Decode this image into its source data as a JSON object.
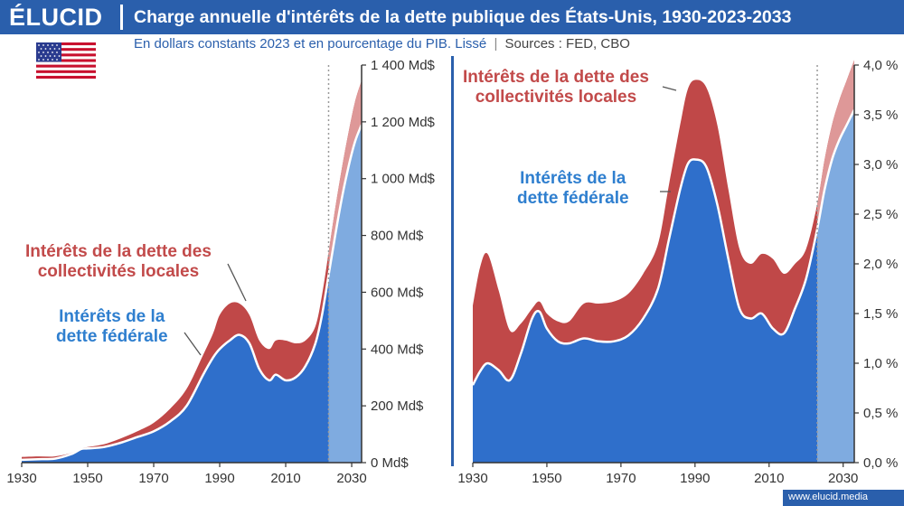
{
  "header": {
    "logo": "ÉLUCID",
    "title": "Charge annuelle d'intérêts de la dette publique des États-Unis, 1930-2023-2033",
    "subtitle": "En dollars constants 2023 et en pourcentage du PIB. Lissé",
    "separator": "|",
    "sources": "Sources : FED, CBO"
  },
  "footer": {
    "site": "www.elucid.media"
  },
  "colors": {
    "federal": "#2f6fcb",
    "federal_forecast": "#7fabe0",
    "local": "#c04848",
    "local_forecast": "#de9898",
    "brand": "#2a5fac"
  },
  "icons": {
    "flag": "us-flag-icon"
  },
  "chart_data": [
    {
      "type": "area",
      "stacked": true,
      "unit": "Md$ (dollars constants 2023)",
      "forecast_from": 2023,
      "xlim": [
        1930,
        2033
      ],
      "ylim": [
        0,
        1400
      ],
      "x_ticks": [
        1930,
        1950,
        1970,
        1990,
        2010,
        2030
      ],
      "y_ticks": [
        0,
        200,
        400,
        600,
        800,
        1000,
        1200,
        1400
      ],
      "y_tick_labels": [
        "0 Md$",
        "200 Md$",
        "400 Md$",
        "600 Md$",
        "800 Md$",
        "1 000 Md$",
        "1 200 Md$",
        "1 400 Md$"
      ],
      "x": [
        1930,
        1935,
        1940,
        1945,
        1948,
        1950,
        1955,
        1960,
        1965,
        1970,
        1975,
        1980,
        1985,
        1988,
        1990,
        1993,
        1996,
        1999,
        2002,
        2005,
        2007,
        2010,
        2013,
        2016,
        2019,
        2021,
        2023,
        2025,
        2027,
        2029,
        2031,
        2033
      ],
      "series": [
        {
          "name": "Intérêts de la dette fédérale",
          "values": [
            10,
            12,
            14,
            30,
            48,
            50,
            55,
            70,
            90,
            110,
            145,
            200,
            310,
            370,
            400,
            430,
            450,
            420,
            330,
            290,
            310,
            290,
            300,
            340,
            420,
            520,
            660,
            800,
            930,
            1040,
            1130,
            1190
          ]
        },
        {
          "name": "Intérêts de la dette des collectivités locales",
          "values": [
            10,
            10,
            8,
            4,
            3,
            5,
            10,
            15,
            20,
            30,
            45,
            60,
            70,
            85,
            120,
            130,
            110,
            100,
            100,
            110,
            120,
            140,
            120,
            90,
            60,
            70,
            80,
            95,
            105,
            120,
            140,
            155
          ]
        }
      ],
      "annotations": {
        "local": [
          "Intérêts de la dette des",
          "collectivités locales"
        ],
        "federal": [
          "Intérêts de la",
          "dette fédérale"
        ]
      }
    },
    {
      "type": "area",
      "stacked": true,
      "unit": "% du PIB",
      "forecast_from": 2023,
      "xlim": [
        1930,
        2033
      ],
      "ylim": [
        0,
        4.0
      ],
      "x_ticks": [
        1930,
        1950,
        1970,
        1990,
        2010,
        2030
      ],
      "y_ticks": [
        0,
        0.5,
        1.0,
        1.5,
        2.0,
        2.5,
        3.0,
        3.5,
        4.0
      ],
      "y_tick_labels": [
        "0,0 %",
        "0,5 %",
        "1,0 %",
        "1,5 %",
        "2,0 %",
        "2,5 %",
        "3,0 %",
        "3,5 %",
        "4,0 %"
      ],
      "x": [
        1930,
        1932,
        1934,
        1937,
        1940,
        1943,
        1946,
        1948,
        1950,
        1953,
        1956,
        1960,
        1964,
        1968,
        1972,
        1976,
        1980,
        1983,
        1986,
        1988,
        1990,
        1993,
        1996,
        1999,
        2002,
        2005,
        2008,
        2011,
        2014,
        2017,
        2020,
        2023,
        2025,
        2027,
        2029,
        2031,
        2033
      ],
      "series": [
        {
          "name": "Intérêts de la dette fédérale",
          "values": [
            0.78,
            0.92,
            1.0,
            0.93,
            0.83,
            1.1,
            1.45,
            1.52,
            1.35,
            1.22,
            1.2,
            1.25,
            1.22,
            1.22,
            1.28,
            1.45,
            1.75,
            2.25,
            2.75,
            3.0,
            3.05,
            2.98,
            2.6,
            2.05,
            1.55,
            1.45,
            1.5,
            1.35,
            1.3,
            1.55,
            1.85,
            2.35,
            2.75,
            3.05,
            3.25,
            3.4,
            3.55
          ]
        },
        {
          "name": "Intérêts de la dette des collectivités locales",
          "values": [
            0.8,
            1.05,
            1.1,
            0.8,
            0.5,
            0.3,
            0.1,
            0.1,
            0.15,
            0.2,
            0.22,
            0.35,
            0.38,
            0.4,
            0.42,
            0.45,
            0.45,
            0.55,
            0.65,
            0.75,
            0.8,
            0.8,
            0.8,
            0.7,
            0.6,
            0.55,
            0.6,
            0.7,
            0.6,
            0.45,
            0.3,
            0.25,
            0.3,
            0.35,
            0.4,
            0.45,
            0.5
          ]
        }
      ],
      "annotations": {
        "local": [
          "Intérêts de la dette des",
          "collectivités locales"
        ],
        "federal": [
          "Intérêts de la",
          "dette fédérale"
        ]
      }
    }
  ]
}
